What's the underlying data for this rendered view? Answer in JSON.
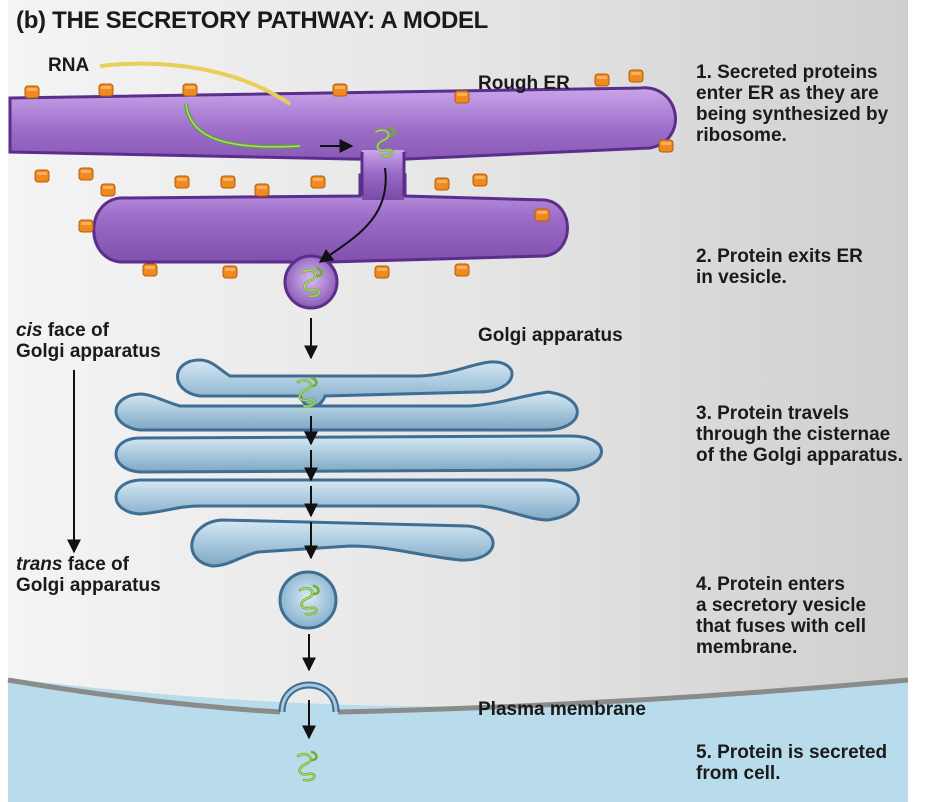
{
  "title": "(b) THE SECRETORY PATHWAY: A MODEL",
  "labels": {
    "rna": "RNA",
    "rough_er": "Rough ER",
    "golgi_apparatus": "Golgi apparatus",
    "plasma_membrane": "Plasma membrane"
  },
  "faces": {
    "cis": {
      "italic": "cis",
      "rest": " face of",
      "line2": "Golgi apparatus"
    },
    "trans": {
      "italic": "trans",
      "rest": " face of",
      "line2": "Golgi apparatus"
    }
  },
  "steps": [
    {
      "lines": [
        "1. Secreted proteins",
        "enter ER as they are",
        "being synthesized by",
        "ribosome."
      ]
    },
    {
      "lines": [
        "2. Protein exits ER",
        "in vesicle."
      ]
    },
    {
      "lines": [
        "3. Protein travels",
        "through the cisternae",
        "of the Golgi apparatus."
      ]
    },
    {
      "lines": [
        "4. Protein enters",
        "a secretory vesicle",
        "that fuses with cell",
        "membrane."
      ]
    },
    {
      "lines": [
        "5. Protein is secreted",
        "from cell."
      ]
    }
  ],
  "colors": {
    "er_fill": "#9b6bc8",
    "er_edge": "#5a2e8a",
    "ribosome": "#f08a1e",
    "golgi_fill": "#a9c9de",
    "golgi_edge": "#3f6e92",
    "cell_bg": "#d9d9d9",
    "extracellular": "#b9dcec",
    "protein": "#7fbf3a"
  }
}
